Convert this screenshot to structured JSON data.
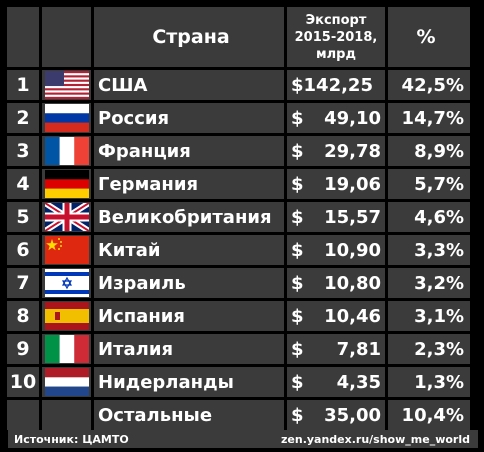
{
  "header": {
    "country": "Страна",
    "export_line1": "Экспорт",
    "export_line2": "2015-2018,",
    "export_line3": "млрд",
    "percent": "%"
  },
  "rows": [
    {
      "rank": "1",
      "flag": "us-flag",
      "country": "США",
      "currency": "$142,25",
      "amount": "",
      "percent": "42,5%"
    },
    {
      "rank": "2",
      "flag": "russia-flag",
      "country": "Россия",
      "currency": "$",
      "amount": "49,10",
      "percent": "14,7%"
    },
    {
      "rank": "3",
      "flag": "france-flag",
      "country": "Франция",
      "currency": "$",
      "amount": "29,78",
      "percent": "8,9%"
    },
    {
      "rank": "4",
      "flag": "germany-flag",
      "country": "Германия",
      "currency": "$",
      "amount": "19,06",
      "percent": "5,7%"
    },
    {
      "rank": "5",
      "flag": "uk-flag",
      "country": "Великобритания",
      "currency": "$",
      "amount": "15,57",
      "percent": "4,6%"
    },
    {
      "rank": "6",
      "flag": "china-flag",
      "country": "Китай",
      "currency": "$",
      "amount": "10,90",
      "percent": "3,3%"
    },
    {
      "rank": "7",
      "flag": "israel-flag",
      "country": "Израиль",
      "currency": "$",
      "amount": "10,80",
      "percent": "3,2%"
    },
    {
      "rank": "8",
      "flag": "spain-flag",
      "country": "Испания",
      "currency": "$",
      "amount": "10,46",
      "percent": "3,1%"
    },
    {
      "rank": "9",
      "flag": "italy-flag",
      "country": "Италия",
      "currency": "$",
      "amount": "7,81",
      "percent": "2,3%"
    },
    {
      "rank": "10",
      "flag": "netherlands-flag",
      "country": "Нидерланды",
      "currency": "$",
      "amount": "4,35",
      "percent": "1,3%"
    }
  ],
  "others": {
    "country": "Остальные",
    "currency": "$",
    "amount": "35,00",
    "percent": "10,4%"
  },
  "footer": {
    "source": "Источник: ЦАМТО",
    "site": "zen.yandex.ru/show_me_world"
  }
}
